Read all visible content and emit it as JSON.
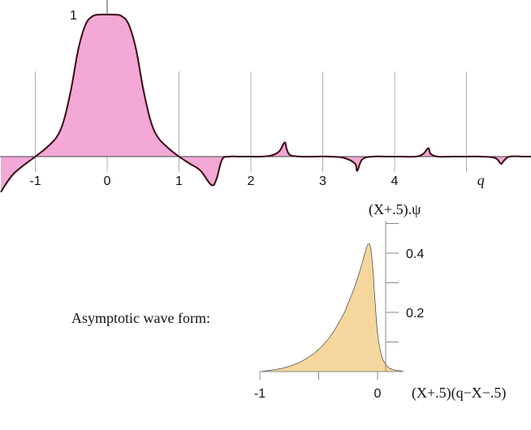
{
  "chart_data": [
    {
      "type": "area",
      "x_ticks": [
        "-1",
        "0",
        "1",
        "2",
        "3",
        "4"
      ],
      "x_var": "q",
      "y_marker": "1",
      "xlim": [
        -1.5,
        5.95
      ],
      "ylim": [
        -0.28,
        1.1
      ],
      "grid": true,
      "fill_color": "#f3a8d6",
      "line_color": "#3a0a12",
      "series": [
        {
          "x": [
            -1.48,
            -1.3,
            -1.0,
            -0.85,
            -0.7,
            -0.6,
            -0.5,
            -0.4,
            -0.3,
            -0.2,
            -0.1,
            0.0,
            0.1,
            0.2,
            0.3,
            0.4,
            0.5,
            0.6,
            0.7,
            0.85,
            1.0,
            1.15,
            1.3,
            1.45,
            1.52,
            1.6,
            1.7,
            1.85,
            2.0,
            2.15,
            2.3,
            2.4,
            2.47,
            2.5,
            2.55,
            2.7,
            2.9,
            3.1,
            3.3,
            3.45,
            3.48,
            3.55,
            3.7,
            3.9,
            4.1,
            4.3,
            4.4,
            4.47,
            4.5,
            4.6,
            4.8,
            5.0,
            5.2,
            5.4,
            5.48,
            5.52,
            5.6,
            5.8,
            5.95
          ],
          "y": [
            -0.25,
            -0.12,
            0.0,
            0.06,
            0.14,
            0.26,
            0.48,
            0.76,
            0.93,
            0.99,
            1.0,
            1.0,
            1.0,
            0.99,
            0.93,
            0.76,
            0.48,
            0.26,
            0.14,
            0.06,
            0.0,
            -0.05,
            -0.1,
            -0.2,
            -0.16,
            -0.02,
            0.0,
            0.0,
            0.0,
            0.0,
            0.01,
            0.04,
            0.1,
            0.05,
            0.01,
            0.0,
            0.0,
            0.0,
            -0.01,
            -0.05,
            -0.1,
            -0.02,
            0.0,
            0.0,
            0.0,
            0.0,
            0.02,
            0.06,
            0.02,
            0.0,
            0.0,
            0.0,
            0.0,
            -0.01,
            -0.05,
            -0.03,
            0.0,
            0.0,
            0.0
          ]
        }
      ]
    },
    {
      "type": "area",
      "caption": "Asymptotic wave form:",
      "ylabel": "(X+.5).ψ",
      "xlabel": "(X+.5)(q−X−.5)",
      "x_ticks": [
        "-1",
        "0"
      ],
      "y_ticks": [
        "0.2",
        "0.4"
      ],
      "xlim": [
        -1.0,
        0.22
      ],
      "ylim": [
        0,
        0.5
      ],
      "fill_color": "#f5d79e",
      "line_color": "#555555",
      "series": [
        {
          "x": [
            -1.0,
            -0.9,
            -0.8,
            -0.7,
            -0.6,
            -0.5,
            -0.4,
            -0.3,
            -0.25,
            -0.2,
            -0.15,
            -0.1,
            -0.08,
            -0.06,
            -0.04,
            -0.02,
            0.0,
            0.03,
            0.06,
            0.1,
            0.15,
            0.2,
            0.22
          ],
          "y": [
            0.0,
            0.005,
            0.012,
            0.025,
            0.045,
            0.075,
            0.12,
            0.185,
            0.23,
            0.28,
            0.34,
            0.41,
            0.43,
            0.42,
            0.35,
            0.23,
            0.13,
            0.06,
            0.03,
            0.012,
            0.005,
            0.002,
            0.0
          ]
        }
      ]
    }
  ]
}
